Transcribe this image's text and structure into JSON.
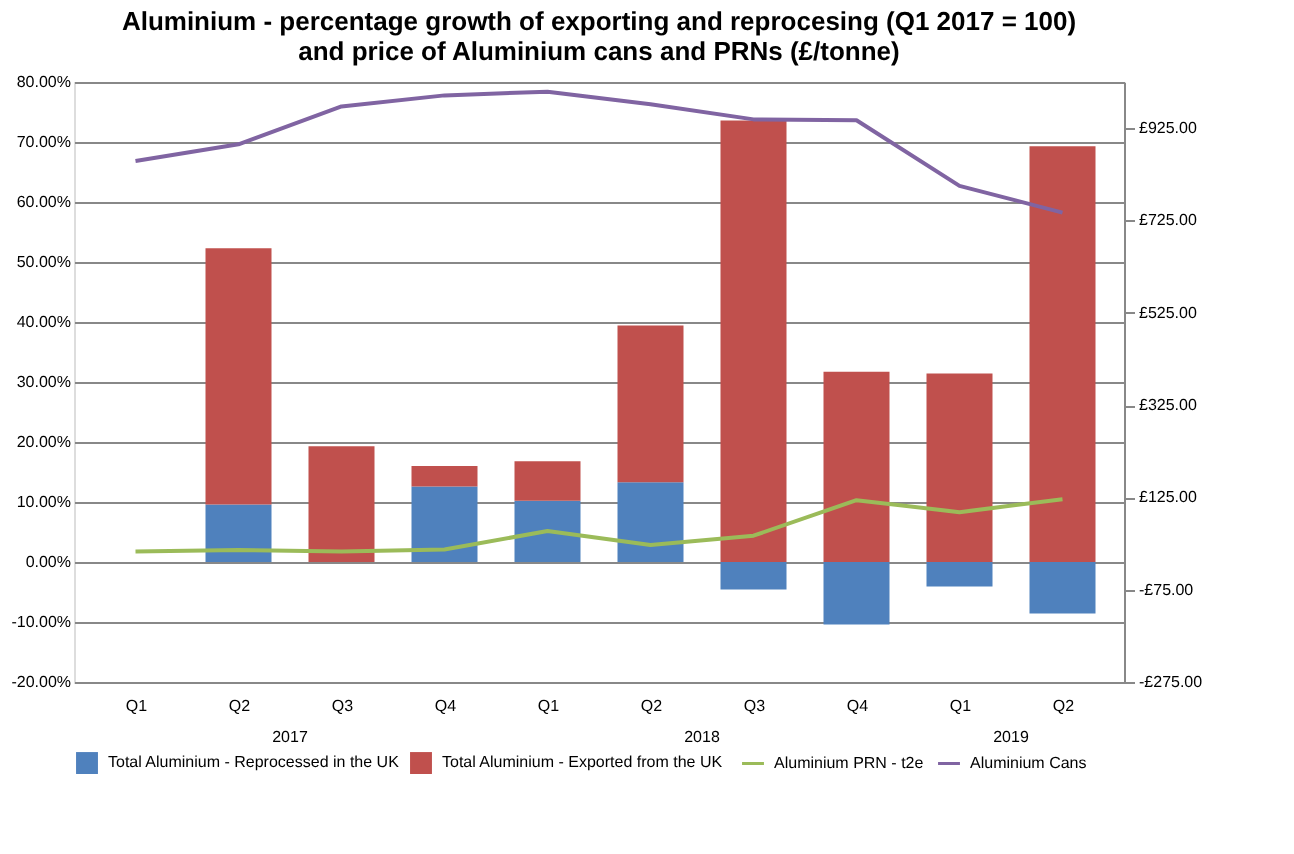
{
  "chart_data": {
    "type": "bar",
    "stacked": true,
    "title": [
      "Aluminium - percentage growth of exporting and reprocesing (Q1 2017 = 100)",
      "and price of Aluminium cans and PRNs (£/tonne)"
    ],
    "categories": [
      "Q1",
      "Q2",
      "Q3",
      "Q4",
      "Q1",
      "Q2",
      "Q3",
      "Q4",
      "Q1",
      "Q2"
    ],
    "annotations": [
      "2017",
      "2018",
      "2019"
    ],
    "series": [
      {
        "name": "Total Aluminium - Reprocessed in the UK",
        "color": "#4f81bd",
        "values": [
          null,
          9.6,
          null,
          12.6,
          10.2,
          13.3,
          -4.6,
          -10.4,
          -4.1,
          -8.6
        ]
      },
      {
        "name": "Total Aluminium - Exported from the UK",
        "color": "#c0504d",
        "values": [
          null,
          42.7,
          19.3,
          3.4,
          6.6,
          26.1,
          73.6,
          31.7,
          31.4,
          69.3
        ]
      },
      {
        "name": "Aluminium PRN - t2e",
        "color": "#9bbb59",
        "type": "line",
        "axis": "y2",
        "values": [
          8,
          11,
          8,
          12,
          52,
          22,
          42,
          119,
          93,
          121
        ]
      },
      {
        "name": "Aluminium Cans",
        "color": "#8064a2",
        "type": "line",
        "axis": "y2",
        "values": [
          854,
          890,
          972,
          996,
          1004,
          977,
          944,
          942,
          800,
          742
        ]
      }
    ],
    "ylim": [
      -20,
      80
    ],
    "yticks": [
      {
        "value": -20,
        "label": "-20.00%"
      },
      {
        "value": -10,
        "label": "-10.00%"
      },
      {
        "value": 0,
        "label": "0.00%"
      },
      {
        "value": 10,
        "label": "10.00%"
      },
      {
        "value": 20,
        "label": "20.00%"
      },
      {
        "value": 30,
        "label": "30.00%"
      },
      {
        "value": 40,
        "label": "40.00%"
      },
      {
        "value": 50,
        "label": "50.00%"
      },
      {
        "value": 60,
        "label": "60.00%"
      },
      {
        "value": 70,
        "label": "70.00%"
      },
      {
        "value": 80,
        "label": "80.00%"
      }
    ],
    "y2lim": [
      -275,
      1025
    ],
    "y2ticks": [
      {
        "value": -275,
        "label": "-£275.00"
      },
      {
        "value": -75,
        "label": "-£75.00"
      },
      {
        "value": 125,
        "label": "£125.00"
      },
      {
        "value": 325,
        "label": "£325.00"
      },
      {
        "value": 525,
        "label": "£525.00"
      },
      {
        "value": 725,
        "label": "£725.00"
      },
      {
        "value": 925,
        "label": "£925.00"
      }
    ],
    "grid": "y",
    "legend": "bottom",
    "line_style": "solid",
    "marker": "none"
  }
}
